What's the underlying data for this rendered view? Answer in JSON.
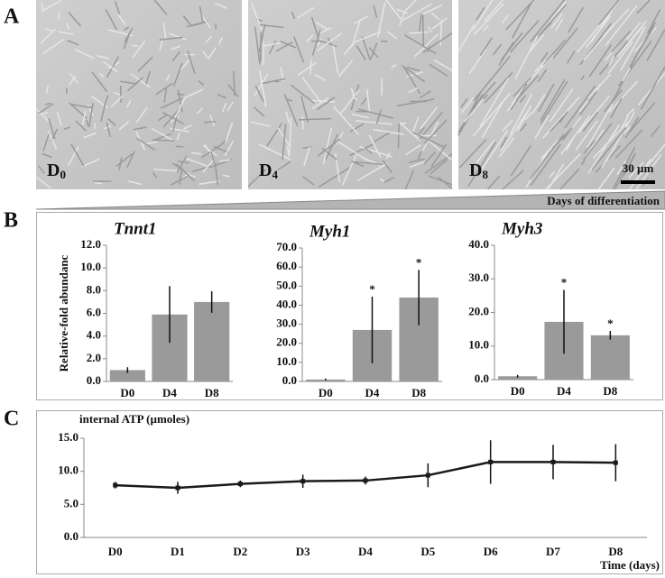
{
  "figure": {
    "panels": [
      "A",
      "B",
      "C"
    ],
    "images": [
      {
        "label": "D",
        "subscript": "0"
      },
      {
        "label": "D",
        "subscript": "4"
      },
      {
        "label": "D",
        "subscript": "8"
      }
    ],
    "scale_bar": "30 µm",
    "gradient_label": "Days of differentiation"
  },
  "chart_data": [
    {
      "type": "bar",
      "title": "Tnnt1",
      "y_label": "Relative-fold abundanc",
      "color": "#9a9a9a",
      "grid": false,
      "categories": [
        "D0",
        "D4",
        "D8"
      ],
      "values": [
        1.0,
        5.9,
        7.0
      ],
      "errors": [
        0.25,
        2.5,
        0.95
      ],
      "significance": [
        null,
        null,
        null
      ],
      "ylim": [
        0,
        12
      ],
      "yticks": [
        {
          "value": 0,
          "label": "0.0"
        },
        {
          "value": 2,
          "label": "2.0"
        },
        {
          "value": 4,
          "label": "4.0"
        },
        {
          "value": 6,
          "label": "6.0"
        },
        {
          "value": 8,
          "label": "8.0"
        },
        {
          "value": 10,
          "label": "10.0"
        },
        {
          "value": 12,
          "label": "12.0"
        }
      ]
    },
    {
      "type": "bar",
      "title": "Myh1",
      "color": "#9a9a9a",
      "grid": false,
      "categories": [
        "D0",
        "D4",
        "D8"
      ],
      "values": [
        1.0,
        27.0,
        44.0
      ],
      "errors": [
        0.5,
        17.5,
        14.5
      ],
      "significance": [
        null,
        "*",
        "*"
      ],
      "ylim": [
        0,
        70
      ],
      "yticks": [
        {
          "value": 0,
          "label": "0.0"
        },
        {
          "value": 10,
          "label": "10.0"
        },
        {
          "value": 20,
          "label": "20.0"
        },
        {
          "value": 30,
          "label": "30.0"
        },
        {
          "value": 40,
          "label": "40.0"
        },
        {
          "value": 50,
          "label": "50.0"
        },
        {
          "value": 60,
          "label": "60.0"
        },
        {
          "value": 70,
          "label": "70.0"
        }
      ]
    },
    {
      "type": "bar",
      "title": "Myh3",
      "color": "#9a9a9a",
      "grid": false,
      "categories": [
        "D0",
        "D4",
        "D8"
      ],
      "values": [
        1.0,
        17.2,
        13.2
      ],
      "errors": [
        0.4,
        9.5,
        1.3
      ],
      "significance": [
        null,
        "*",
        "*"
      ],
      "ylim": [
        0,
        40
      ],
      "yticks": [
        {
          "value": 0,
          "label": "0.0"
        },
        {
          "value": 10,
          "label": "10.0"
        },
        {
          "value": 20,
          "label": "20.0"
        },
        {
          "value": 30,
          "label": "30.0"
        },
        {
          "value": 40,
          "label": "40.0"
        }
      ]
    },
    {
      "type": "line",
      "y_label": "internal ATP (µmoles)",
      "x_label": "Time (days)",
      "color": "#1a1a1a",
      "grid": false,
      "categories": [
        "D0",
        "D1",
        "D2",
        "D3",
        "D4",
        "D5",
        "D6",
        "D7",
        "D8"
      ],
      "values": [
        7.9,
        7.5,
        8.1,
        8.5,
        8.6,
        9.4,
        11.4,
        11.4,
        11.3
      ],
      "errors": [
        0.5,
        0.9,
        0.5,
        1.0,
        0.6,
        1.8,
        3.3,
        2.6,
        2.8
      ],
      "ylim": [
        0,
        15
      ],
      "yticks": [
        {
          "value": 0,
          "label": "0.0"
        },
        {
          "value": 5,
          "label": "5.0"
        },
        {
          "value": 10,
          "label": "10.0"
        },
        {
          "value": 15,
          "label": "15.0"
        }
      ]
    }
  ]
}
